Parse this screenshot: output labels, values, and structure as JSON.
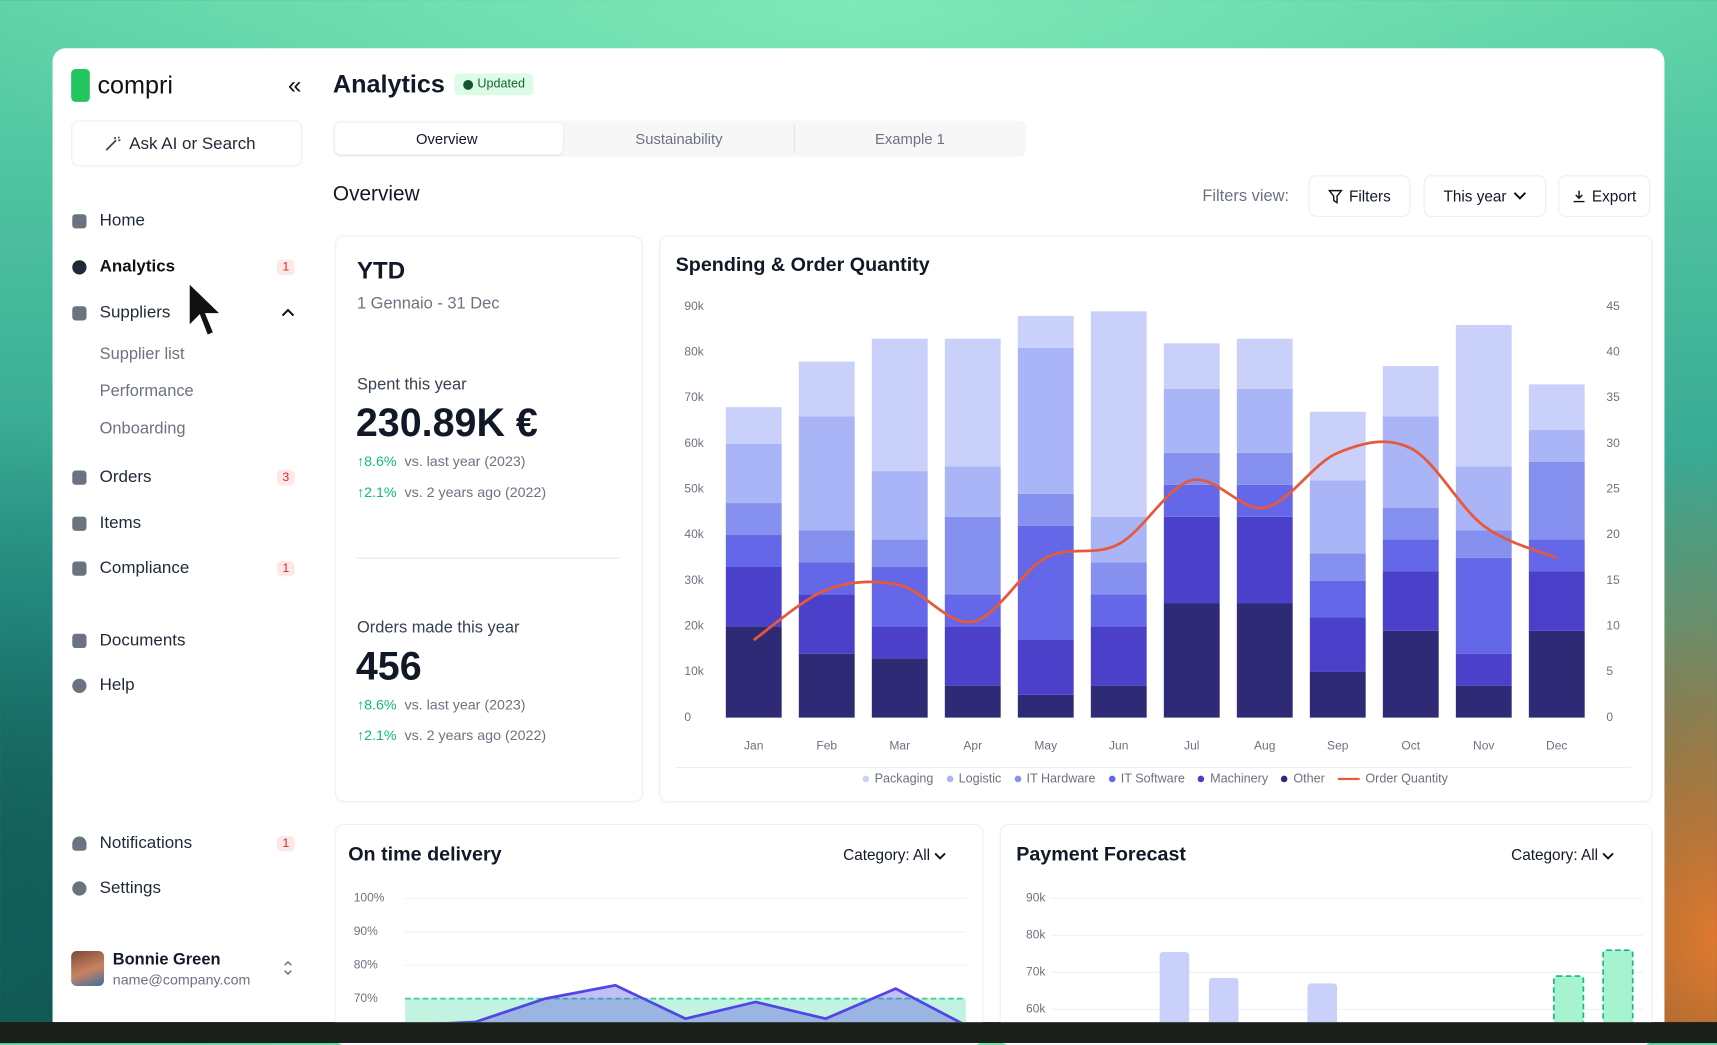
{
  "sidebar": {
    "brand": "compri",
    "search": "Ask AI or Search",
    "nav": [
      {
        "label": "Home"
      },
      {
        "label": "Analytics",
        "badge": 1
      },
      {
        "label": "Suppliers"
      },
      {
        "label": "Orders",
        "badge": 3
      },
      {
        "label": "Items"
      },
      {
        "label": "Compliance",
        "badge": 1
      },
      {
        "label": "Documents"
      },
      {
        "label": "Help"
      }
    ],
    "suppliers_sub": [
      "Supplier list",
      "Performance",
      "Onboarding"
    ],
    "bottom_nav": [
      {
        "label": "Notifications",
        "badge": 1
      },
      {
        "label": "Settings"
      }
    ],
    "user": {
      "name": "Bonnie Green",
      "email": "name@company.com"
    }
  },
  "header": {
    "title": "Analytics",
    "badge": "Updated",
    "tabs": [
      "Overview",
      "Sustainability",
      "Example 1"
    ]
  },
  "toolbar": {
    "title": "Overview",
    "filters_label": "Filters view:",
    "buttons": [
      "Filters",
      "This year",
      "Export"
    ]
  },
  "kpi": {
    "title": "YTD",
    "period": "1 Gennaio - 31 Dec",
    "blocks": [
      {
        "label": "Spent this year",
        "value": "230.89K €",
        "changes": [
          {
            "delta": "↑8.6%",
            "text": "vs. last year (2023)"
          },
          {
            "delta": "↑2.1%",
            "text": "vs. 2 years ago (2022)"
          }
        ]
      },
      {
        "label": "Orders made this year",
        "value": 456,
        "changes": [
          {
            "delta": "↑8.6%",
            "text": "vs. last year (2023)"
          },
          {
            "delta": "↑2.1%",
            "text": "vs. 2 years ago (2022)"
          }
        ]
      }
    ]
  },
  "chart_data": [
    {
      "type": "bar",
      "stacked": true,
      "title": "Spending & Order Quantity",
      "categories": [
        "Jan",
        "Feb",
        "Mar",
        "Apr",
        "May",
        "Jun",
        "Jul",
        "Aug",
        "Sep",
        "Oct",
        "Nov",
        "Dec"
      ],
      "series": [
        {
          "name": "Packaging",
          "color": "#c9d0fa",
          "values": [
            8000,
            12000,
            29000,
            28000,
            7000,
            45000,
            10000,
            11000,
            15000,
            11000,
            31000,
            10000
          ]
        },
        {
          "name": "Logistic",
          "color": "#aab5f7",
          "values": [
            13000,
            25000,
            15000,
            11000,
            32000,
            10000,
            14000,
            14000,
            16000,
            20000,
            14000,
            7000
          ]
        },
        {
          "name": "IT Hardware",
          "color": "#8590ef",
          "values": [
            7000,
            7000,
            6000,
            17000,
            7000,
            7000,
            7000,
            7000,
            6000,
            7000,
            6000,
            17000
          ]
        },
        {
          "name": "IT Software",
          "color": "#6467e8",
          "values": [
            7000,
            7000,
            13000,
            7000,
            25000,
            7000,
            7000,
            7000,
            8000,
            7000,
            21000,
            7000
          ]
        },
        {
          "name": "Machinery",
          "color": "#4a40c9",
          "values": [
            13000,
            13000,
            7000,
            13000,
            12000,
            13000,
            19000,
            19000,
            12000,
            13000,
            7000,
            13000
          ]
        },
        {
          "name": "Other",
          "color": "#2f2a75",
          "values": [
            20000,
            14000,
            13000,
            7000,
            5000,
            7000,
            25000,
            25000,
            10000,
            19000,
            7000,
            19000
          ]
        },
        {
          "name": "Order Quantity",
          "type": "line",
          "axis": "y2",
          "color": "#e8593a",
          "values": [
            8.5,
            14,
            14.5,
            10.5,
            17.5,
            19,
            26,
            23,
            29,
            29.5,
            21,
            17.5
          ]
        }
      ],
      "ylim": [
        0,
        90000
      ],
      "yticks": [
        0,
        {
          "value": 10000,
          "label": "10k"
        },
        {
          "value": 20000,
          "label": "20k"
        },
        {
          "value": 30000,
          "label": "30k"
        },
        {
          "value": 40000,
          "label": "40k"
        },
        {
          "value": 50000,
          "label": "50k"
        },
        {
          "value": 60000,
          "label": "60k"
        },
        {
          "value": 70000,
          "label": "70k"
        },
        {
          "value": 80000,
          "label": "80k"
        },
        {
          "value": 90000,
          "label": "90k"
        }
      ],
      "y2lim": [
        0,
        45
      ],
      "y2ticks": [
        0,
        5,
        10,
        15,
        20,
        25,
        30,
        35,
        40,
        45
      ],
      "grid": false,
      "legend": "bottom"
    },
    {
      "type": "line",
      "title": "On time delivery",
      "filter": "Category: All",
      "categories": [
        null,
        null,
        null,
        null,
        null,
        null,
        null,
        null,
        null
      ],
      "series": [
        {
          "color": "#4f46e5",
          "values": [
            62,
            63,
            70,
            74,
            64,
            69,
            64,
            73,
            62
          ]
        }
      ],
      "threshold": 70,
      "threshold_color": "#34d399",
      "ylim": [
        60,
        100
      ],
      "yticks": [
        {
          "value": 100,
          "label": "100%"
        },
        {
          "value": 90,
          "label": "90%"
        },
        {
          "value": 80,
          "label": "80%"
        },
        {
          "value": 70,
          "label": "70%"
        }
      ],
      "grid": true
    },
    {
      "type": "bar",
      "stacked": false,
      "title": "Payment Forecast",
      "filter": "Category: All",
      "categories": [
        null,
        null,
        null,
        null,
        null,
        null,
        null,
        null,
        null,
        null,
        null,
        null
      ],
      "series": [
        {
          "color": "#c9d0fa",
          "values": [
            null,
            null,
            75500,
            68500,
            null,
            67000,
            null,
            null,
            null,
            null,
            null,
            null
          ]
        },
        {
          "color": "#a7f3d0",
          "dashed": true,
          "values": [
            null,
            null,
            null,
            null,
            null,
            null,
            null,
            null,
            null,
            null,
            69000,
            76000
          ]
        }
      ],
      "ylim": [
        50000,
        90000
      ],
      "yticks": [
        {
          "value": 90000,
          "label": "90k"
        },
        {
          "value": 80000,
          "label": "80k"
        },
        {
          "value": 70000,
          "label": "70k"
        },
        {
          "value": 60000,
          "label": "60k"
        }
      ],
      "grid": true
    }
  ]
}
